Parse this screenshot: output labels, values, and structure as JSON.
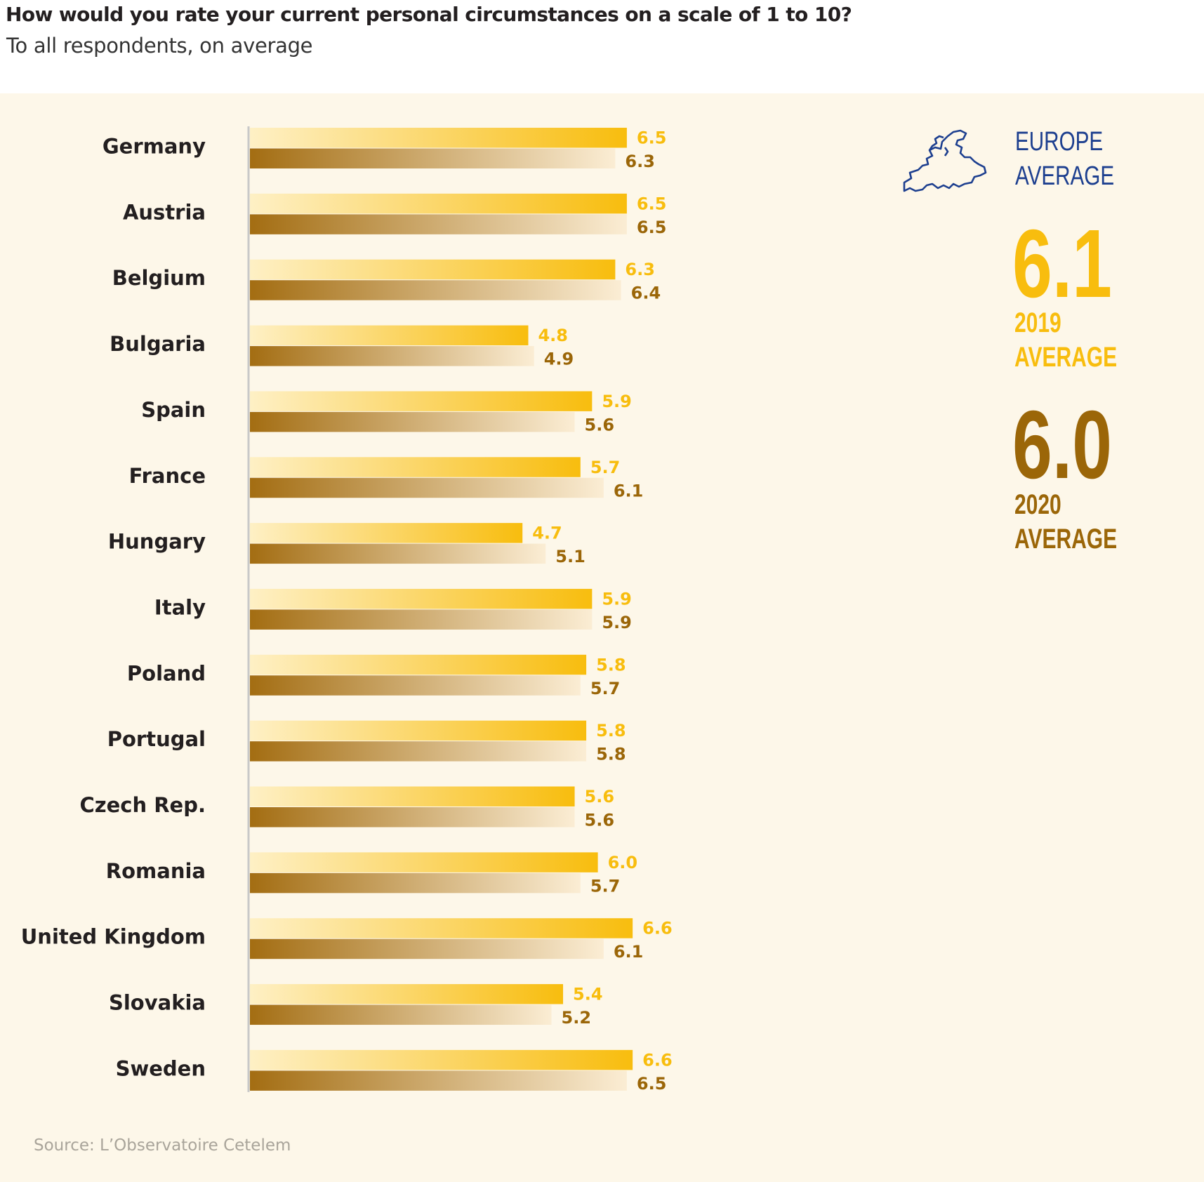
{
  "header": {
    "title": "How would you rate your current personal circumstances on a scale of 1 to 10?",
    "subtitle": "To all respondents, on average"
  },
  "source": "Source: L’Observatoire Cetelem",
  "legend": {
    "heading": "EUROPE AVERAGE",
    "value_2019": "6.1",
    "label_2019": "2019 AVERAGE",
    "value_2020": "6.0",
    "label_2020": "2020 AVERAGE",
    "icon": "europe-map-icon"
  },
  "colors": {
    "panel_bg": "#fdf7e9",
    "series_2019": "#f8bd0e",
    "series_2019_light": "#fef0c5",
    "series_2020": "#a36d12",
    "series_2020_light": "#fbedd4",
    "label_2020": "#9b6608",
    "category_text": "#231f20",
    "europe_blue": "#1d3f8f",
    "axis_line": "#c8c8c8"
  },
  "chart_data": {
    "type": "bar",
    "orientation": "horizontal",
    "title": "How would you rate your current personal circumstances on a scale of 1 to 10?",
    "subtitle": "To all respondents, on average",
    "categories": [
      "Germany",
      "Austria",
      "Belgium",
      "Bulgaria",
      "Spain",
      "France",
      "Hungary",
      "Italy",
      "Poland",
      "Portugal",
      "Czech Rep.",
      "Romania",
      "United Kingdom",
      "Slovakia",
      "Sweden"
    ],
    "series": [
      {
        "name": "2019",
        "values": [
          6.5,
          6.5,
          6.3,
          4.8,
          5.9,
          5.7,
          4.7,
          5.9,
          5.8,
          5.8,
          5.6,
          6.0,
          6.6,
          5.4,
          6.6
        ]
      },
      {
        "name": "2020",
        "values": [
          6.3,
          6.5,
          6.4,
          4.9,
          5.6,
          6.1,
          5.1,
          5.9,
          5.7,
          5.8,
          5.6,
          5.7,
          6.1,
          5.2,
          6.5
        ]
      }
    ],
    "xlim": [
      0,
      10
    ],
    "xlabel": "",
    "ylabel": "",
    "grid": false,
    "data_labels": true
  }
}
